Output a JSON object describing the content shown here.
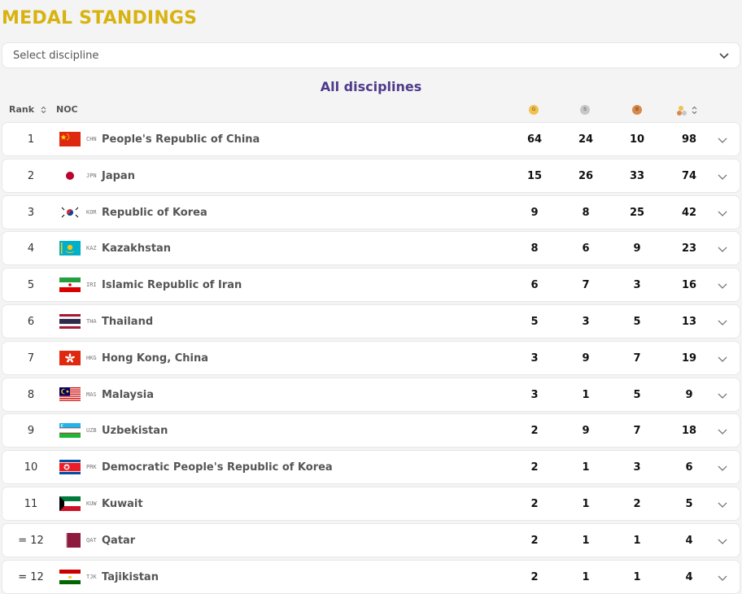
{
  "title": "MEDAL STANDINGS",
  "select": {
    "placeholder": "Select discipline"
  },
  "subtitle": "All disciplines",
  "headers": {
    "rank": "Rank",
    "noc": "NOC"
  },
  "medal_colors": {
    "gold": "#f2c14e",
    "silver": "#c7c7c7",
    "bronze": "#d9894a"
  },
  "rows": [
    {
      "rank": "1",
      "code": "CHN",
      "name": "People's Republic of China",
      "gold": "64",
      "silver": "24",
      "bronze": "10",
      "total": "98",
      "flag": "chn"
    },
    {
      "rank": "2",
      "code": "JPN",
      "name": "Japan",
      "gold": "15",
      "silver": "26",
      "bronze": "33",
      "total": "74",
      "flag": "jpn"
    },
    {
      "rank": "3",
      "code": "KOR",
      "name": "Republic of Korea",
      "gold": "9",
      "silver": "8",
      "bronze": "25",
      "total": "42",
      "flag": "kor"
    },
    {
      "rank": "4",
      "code": "KAZ",
      "name": "Kazakhstan",
      "gold": "8",
      "silver": "6",
      "bronze": "9",
      "total": "23",
      "flag": "kaz"
    },
    {
      "rank": "5",
      "code": "IRI",
      "name": "Islamic Republic of Iran",
      "gold": "6",
      "silver": "7",
      "bronze": "3",
      "total": "16",
      "flag": "iri"
    },
    {
      "rank": "6",
      "code": "THA",
      "name": "Thailand",
      "gold": "5",
      "silver": "3",
      "bronze": "5",
      "total": "13",
      "flag": "tha"
    },
    {
      "rank": "7",
      "code": "HKG",
      "name": "Hong Kong, China",
      "gold": "3",
      "silver": "9",
      "bronze": "7",
      "total": "19",
      "flag": "hkg"
    },
    {
      "rank": "8",
      "code": "MAS",
      "name": "Malaysia",
      "gold": "3",
      "silver": "1",
      "bronze": "5",
      "total": "9",
      "flag": "mas"
    },
    {
      "rank": "9",
      "code": "UZB",
      "name": "Uzbekistan",
      "gold": "2",
      "silver": "9",
      "bronze": "7",
      "total": "18",
      "flag": "uzb"
    },
    {
      "rank": "10",
      "code": "PRK",
      "name": "Democratic People's Republic of Korea",
      "gold": "2",
      "silver": "1",
      "bronze": "3",
      "total": "6",
      "flag": "prk"
    },
    {
      "rank": "11",
      "code": "KUW",
      "name": "Kuwait",
      "gold": "2",
      "silver": "1",
      "bronze": "2",
      "total": "5",
      "flag": "kuw"
    },
    {
      "rank": "= 12",
      "code": "QAT",
      "name": "Qatar",
      "gold": "2",
      "silver": "1",
      "bronze": "1",
      "total": "4",
      "flag": "qat"
    },
    {
      "rank": "= 12",
      "code": "TJK",
      "name": "Tajikistan",
      "gold": "2",
      "silver": "1",
      "bronze": "1",
      "total": "4",
      "flag": "tjk"
    }
  ]
}
